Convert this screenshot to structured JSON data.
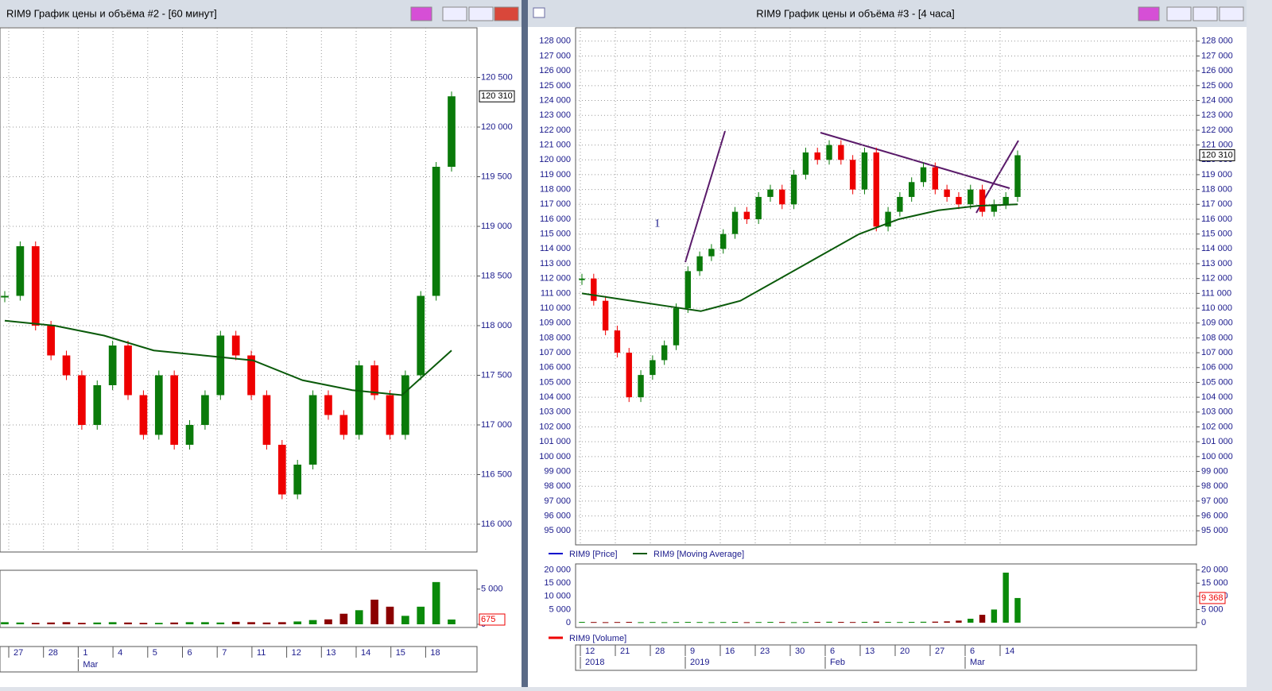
{
  "windows": [
    {
      "title": "RIM9 График цены и объёма #2 - [60 минут]",
      "price": {
        "type": "candlestick",
        "ylim": [
          115720,
          121000
        ],
        "yticks": [
          {
            "value": 116000,
            "label": "116 000"
          },
          {
            "value": 116500,
            "label": "116 500"
          },
          {
            "value": 117000,
            "label": "117 000"
          },
          {
            "value": 117500,
            "label": "117 500"
          },
          {
            "value": 118000,
            "label": "118 000"
          },
          {
            "value": 118500,
            "label": "118 500"
          },
          {
            "value": 119000,
            "label": "119 000"
          },
          {
            "value": 119500,
            "label": "119 500"
          },
          {
            "value": 120000,
            "label": "120 000"
          },
          {
            "value": 120500,
            "label": "120 500"
          }
        ],
        "close": [
          118300,
          118800,
          118000,
          117700,
          117500,
          117000,
          117400,
          117800,
          117300,
          116900,
          117500,
          116800,
          117000,
          117300,
          117900,
          117700,
          117300,
          116800,
          116300,
          116600,
          117300,
          117100,
          116900,
          117600,
          117300,
          116900,
          117500,
          118300,
          119600,
          120310
        ],
        "ma": [
          118050,
          118000,
          117900,
          117750,
          117700,
          117650,
          117450,
          117350,
          117300,
          117750
        ],
        "last_price": {
          "value": 120310,
          "label": "120 310"
        }
      },
      "volume": {
        "ylim": [
          0,
          7000
        ],
        "yticks": [
          0,
          {
            "value": 5000,
            "label": "5 000"
          }
        ],
        "values": [
          300,
          250,
          200,
          250,
          300,
          200,
          250,
          300,
          250,
          200,
          200,
          250,
          300,
          300,
          250,
          350,
          300,
          250,
          300,
          400,
          600,
          700,
          1500,
          2000,
          3500,
          2500,
          1200,
          2500,
          6000,
          675
        ],
        "last_value": 675
      },
      "dates": {
        "row1": [
          "27",
          "28",
          "1",
          "4",
          "5",
          "6",
          "7",
          "11",
          "12",
          "13",
          "14",
          "15",
          "18"
        ],
        "row2": [
          null,
          null,
          "Mar",
          null,
          null,
          null,
          null,
          null,
          null,
          null,
          null,
          null,
          null
        ]
      }
    },
    {
      "title": "RIM9 График цены и объёма #3 - [4 часа]",
      "price": {
        "type": "candlestick",
        "ylim": [
          94050,
          128900
        ],
        "yticks": [
          {
            "value": 95000,
            "label": "95 000"
          },
          {
            "value": 96000,
            "label": "96 000"
          },
          {
            "value": 97000,
            "label": "97 000"
          },
          {
            "value": 98000,
            "label": "98 000"
          },
          {
            "value": 99000,
            "label": "99 000"
          },
          {
            "value": 100000,
            "label": "100 000"
          },
          {
            "value": 101000,
            "label": "101 000"
          },
          {
            "value": 102000,
            "label": "102 000"
          },
          {
            "value": 103000,
            "label": "103 000"
          },
          {
            "value": 104000,
            "label": "104 000"
          },
          {
            "value": 105000,
            "label": "105 000"
          },
          {
            "value": 106000,
            "label": "106 000"
          },
          {
            "value": 107000,
            "label": "107 000"
          },
          {
            "value": 108000,
            "label": "108 000"
          },
          {
            "value": 109000,
            "label": "109 000"
          },
          {
            "value": 110000,
            "label": "110 000"
          },
          {
            "value": 111000,
            "label": "111 000"
          },
          {
            "value": 112000,
            "label": "112 000"
          },
          {
            "value": 113000,
            "label": "113 000"
          },
          {
            "value": 114000,
            "label": "114 000"
          },
          {
            "value": 115000,
            "label": "115 000"
          },
          {
            "value": 116000,
            "label": "116 000"
          },
          {
            "value": 117000,
            "label": "117 000"
          },
          {
            "value": 118000,
            "label": "118 000"
          },
          {
            "value": 119000,
            "label": "119 000"
          },
          {
            "value": 120000,
            "label": "120 000"
          },
          {
            "value": 121000,
            "label": "121 000"
          },
          {
            "value": 122000,
            "label": "122 000"
          },
          {
            "value": 123000,
            "label": "123 000"
          },
          {
            "value": 124000,
            "label": "124 000"
          },
          {
            "value": 125000,
            "label": "125 000"
          },
          {
            "value": 126000,
            "label": "126 000"
          },
          {
            "value": 127000,
            "label": "127 000"
          },
          {
            "value": 128000,
            "label": "128 000"
          }
        ],
        "close": [
          112000,
          110500,
          108500,
          107000,
          104000,
          105500,
          106500,
          107500,
          110000,
          112500,
          113500,
          114000,
          115000,
          116500,
          116000,
          117500,
          118000,
          117000,
          119000,
          120500,
          120000,
          121000,
          120000,
          118000,
          120500,
          115500,
          116500,
          117500,
          118500,
          119500,
          118000,
          117500,
          117000,
          118000,
          116500,
          117000,
          117500,
          120310
        ],
        "ma": [
          111000,
          110600,
          110200,
          109800,
          110500,
          112000,
          113500,
          115000,
          116000,
          116600,
          116900,
          117000
        ],
        "last_price": {
          "value": 120310,
          "label": "120 310"
        },
        "annotation": "1"
      },
      "legend": [
        "RIM9 [Price]",
        "RIM9 [Moving Average]"
      ],
      "volume": {
        "ylim": [
          0,
          20500
        ],
        "yticks": [
          0,
          {
            "value": 5000,
            "label": "5 000"
          },
          {
            "value": 10000,
            "label": "10 000"
          },
          {
            "value": 15000,
            "label": "15 000"
          },
          {
            "value": 20000,
            "label": "20 000"
          }
        ],
        "values": [
          300,
          250,
          200,
          250,
          300,
          200,
          250,
          200,
          250,
          300,
          250,
          200,
          250,
          300,
          200,
          250,
          300,
          250,
          200,
          250,
          300,
          350,
          300,
          250,
          300,
          400,
          300,
          250,
          300,
          350,
          400,
          500,
          800,
          1500,
          3000,
          5000,
          19000,
          9368
        ],
        "last_value": {
          "value": 9368,
          "label": "9 368"
        },
        "legend": "RIM9 [Volume]"
      },
      "dates": {
        "row1": [
          "12",
          "21",
          "28",
          "9",
          "16",
          "23",
          "30",
          "6",
          "13",
          "20",
          "27",
          "6",
          "14"
        ],
        "row2": [
          "2018",
          null,
          null,
          "2019",
          null,
          null,
          null,
          "Feb",
          null,
          null,
          null,
          "Mar",
          null
        ]
      }
    }
  ]
}
